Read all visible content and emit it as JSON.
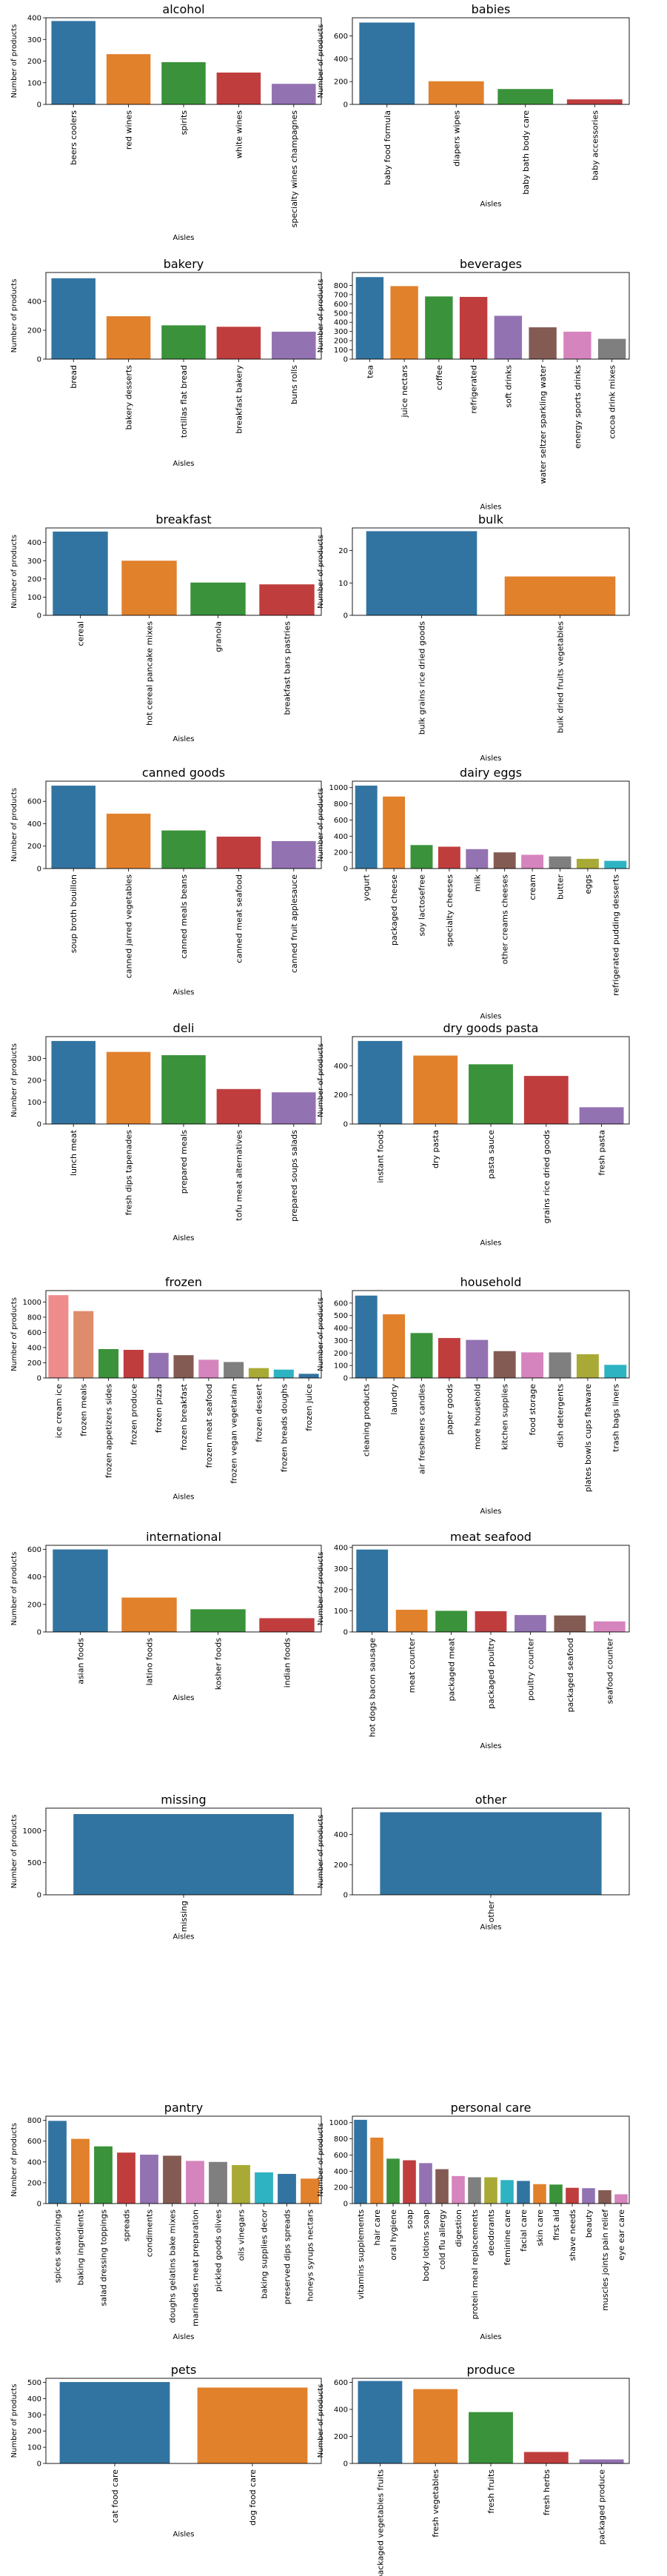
{
  "palette": [
    "#3274a1",
    "#e1812c",
    "#3a923a",
    "#c03d3e",
    "#9372b2",
    "#845b53",
    "#d684bd",
    "#7f7f7f",
    "#a9aa35",
    "#2eb3c2"
  ],
  "palette_pastel_start": [
    "#ee8c8c",
    "#de8c6c"
  ],
  "chart_data": [
    {
      "type": "bar",
      "title": "alcohol",
      "xlabel": "Aisles",
      "ylabel": "Number of products",
      "ylim": [
        0,
        400
      ],
      "yticks": [
        0,
        100,
        200,
        300,
        400
      ],
      "categories": [
        "beers coolers",
        "red wines",
        "spirits",
        "white wines",
        "specialty wines champagnes"
      ],
      "values": [
        385,
        232,
        195,
        147,
        95
      ]
    },
    {
      "type": "bar",
      "title": "babies",
      "xlabel": "Aisles",
      "ylabel": "Number of products",
      "ylim": [
        0,
        760
      ],
      "yticks": [
        0,
        200,
        400,
        600
      ],
      "categories": [
        "baby food formula",
        "diapers wipes",
        "baby bath body care",
        "baby accessories"
      ],
      "values": [
        718,
        203,
        135,
        44
      ]
    },
    {
      "type": "bar",
      "title": "bakery",
      "xlabel": "Aisles",
      "ylabel": "Number of products",
      "ylim": [
        0,
        600
      ],
      "yticks": [
        0,
        200,
        400
      ],
      "categories": [
        "bread",
        "bakery desserts",
        "tortillas flat bread",
        "breakfast bakery",
        "buns rolls"
      ],
      "values": [
        560,
        297,
        234,
        224,
        190
      ]
    },
    {
      "type": "bar",
      "title": "beverages",
      "xlabel": "Aisles",
      "ylabel": "Number of products",
      "ylim": [
        0,
        940
      ],
      "yticks": [
        0,
        100,
        200,
        300,
        400,
        500,
        600,
        700,
        800
      ],
      "categories": [
        "tea",
        "juice nectars",
        "coffee",
        "refrigerated",
        "soft drinks",
        "water seltzer sparkling water",
        "energy sports drinks",
        "cocoa drink mixes"
      ],
      "values": [
        890,
        792,
        680,
        675,
        470,
        345,
        298,
        220
      ]
    },
    {
      "type": "bar",
      "title": "breakfast",
      "xlabel": "Aisles",
      "ylabel": "Number of products",
      "ylim": [
        0,
        480
      ],
      "yticks": [
        0,
        100,
        200,
        300,
        400
      ],
      "categories": [
        "cereal",
        "hot cereal pancake mixes",
        "granola",
        "breakfast bars pastries"
      ],
      "values": [
        460,
        300,
        180,
        170
      ]
    },
    {
      "type": "bar",
      "title": "bulk",
      "xlabel": "Aisles",
      "ylabel": "Number of products",
      "ylim": [
        0,
        27
      ],
      "yticks": [
        0,
        10,
        20
      ],
      "categories": [
        "bulk grains rice dried goods",
        "bulk dried fruits vegetables"
      ],
      "values": [
        26,
        12
      ]
    },
    {
      "type": "bar",
      "title": "canned goods",
      "xlabel": "Aisles",
      "ylabel": "Number of products",
      "ylim": [
        0,
        780
      ],
      "yticks": [
        0,
        200,
        400,
        600
      ],
      "categories": [
        "soup broth bouillon",
        "canned jarred vegetables",
        "canned meals beans",
        "canned meat seafood",
        "canned fruit applesauce"
      ],
      "values": [
        740,
        490,
        340,
        285,
        245
      ]
    },
    {
      "type": "bar",
      "title": "dairy eggs",
      "xlabel": "Aisles",
      "ylabel": "Number of products",
      "ylim": [
        0,
        1080
      ],
      "yticks": [
        0,
        200,
        400,
        600,
        800,
        1000
      ],
      "categories": [
        "yogurt",
        "packaged cheese",
        "soy lactosefree",
        "specialty cheeses",
        "milk",
        "other creams cheeses",
        "cream",
        "butter",
        "eggs",
        "refrigerated pudding desserts"
      ],
      "values": [
        1025,
        890,
        290,
        270,
        240,
        200,
        170,
        150,
        120,
        95
      ]
    },
    {
      "type": "bar",
      "title": "deli",
      "xlabel": "Aisles",
      "ylabel": "Number of products",
      "ylim": [
        0,
        400
      ],
      "yticks": [
        0,
        100,
        200,
        300
      ],
      "categories": [
        "lunch meat",
        "fresh dips tapenades",
        "prepared meals",
        "tofu meat alternatives",
        "prepared soups salads"
      ],
      "values": [
        380,
        330,
        315,
        160,
        145
      ]
    },
    {
      "type": "bar",
      "title": "dry goods pasta",
      "xlabel": "Aisles",
      "ylabel": "Number of products",
      "ylim": [
        0,
        600
      ],
      "yticks": [
        0,
        200,
        400
      ],
      "categories": [
        "instant foods",
        "dry pasta",
        "pasta sauce",
        "grains rice dried goods",
        "fresh pasta"
      ],
      "values": [
        570,
        470,
        410,
        330,
        115
      ]
    },
    {
      "type": "bar",
      "title": "frozen",
      "xlabel": "Aisles",
      "ylabel": "Number of products",
      "ylim": [
        0,
        1150
      ],
      "yticks": [
        0,
        200,
        400,
        600,
        800,
        1000
      ],
      "categories": [
        "ice cream ice",
        "frozen meals",
        "frozen appetizers sides",
        "frozen produce",
        "frozen pizza",
        "frozen breakfast",
        "frozen meat seafood",
        "frozen vegan vegetarian",
        "frozen dessert",
        "frozen breads doughs",
        "frozen juice"
      ],
      "values": [
        1090,
        880,
        380,
        370,
        330,
        300,
        240,
        210,
        130,
        110,
        55
      ]
    },
    {
      "type": "bar",
      "title": "household",
      "xlabel": "Aisles",
      "ylabel": "Number of products",
      "ylim": [
        0,
        700
      ],
      "yticks": [
        0,
        100,
        200,
        300,
        400,
        500,
        600
      ],
      "categories": [
        "cleaning products",
        "laundry",
        "air fresheners candles",
        "paper goods",
        "more household",
        "kitchen supplies",
        "food storage",
        "dish detergents",
        "plates bowls cups flatware",
        "trash bags liners"
      ],
      "values": [
        660,
        510,
        360,
        320,
        305,
        215,
        205,
        205,
        190,
        105
      ]
    },
    {
      "type": "bar",
      "title": "international",
      "xlabel": "Aisles",
      "ylabel": "Number of products",
      "ylim": [
        0,
        630
      ],
      "yticks": [
        0,
        200,
        400,
        600
      ],
      "categories": [
        "asian foods",
        "latino foods",
        "kosher foods",
        "indian foods"
      ],
      "values": [
        600,
        250,
        165,
        100
      ]
    },
    {
      "type": "bar",
      "title": "meat seafood",
      "xlabel": "Aisles",
      "ylabel": "Number of products",
      "ylim": [
        0,
        410
      ],
      "yticks": [
        0,
        100,
        200,
        300,
        400
      ],
      "categories": [
        "hot dogs bacon sausage",
        "meat counter",
        "packaged meat",
        "packaged poultry",
        "poultry counter",
        "packaged seafood",
        "seafood counter"
      ],
      "values": [
        390,
        105,
        100,
        98,
        80,
        78,
        50
      ]
    },
    {
      "type": "bar",
      "title": "missing",
      "xlabel": "Aisles",
      "ylabel": "Number of products",
      "ylim": [
        0,
        1350
      ],
      "yticks": [
        0,
        500,
        1000
      ],
      "categories": [
        "missing"
      ],
      "values": [
        1258
      ]
    },
    {
      "type": "bar",
      "title": "other",
      "xlabel": "Aisles",
      "ylabel": "Number of products",
      "ylim": [
        0,
        575
      ],
      "yticks": [
        0,
        200,
        400
      ],
      "categories": [
        "other"
      ],
      "values": [
        548
      ]
    },
    {
      "type": "bar",
      "title": "pantry",
      "xlabel": "Aisles",
      "ylabel": "Number of products",
      "ylim": [
        0,
        840
      ],
      "yticks": [
        0,
        200,
        400,
        600,
        800
      ],
      "categories": [
        "spices seasonings",
        "baking ingredients",
        "salad dressing toppings",
        "spreads",
        "condiments",
        "doughs gelatins bake mixes",
        "marinades meat preparation",
        "pickled goods olives",
        "oils vinegars",
        "baking supplies decor",
        "preserved dips spreads",
        "honeys syrups nectars"
      ],
      "values": [
        795,
        622,
        550,
        490,
        470,
        460,
        410,
        400,
        370,
        300,
        285,
        240
      ]
    },
    {
      "type": "bar",
      "title": "personal care",
      "xlabel": "Aisles",
      "ylabel": "Number of products",
      "ylim": [
        0,
        1080
      ],
      "yticks": [
        0,
        200,
        400,
        600,
        800,
        1000
      ],
      "categories": [
        "vitamins supplements",
        "hair care",
        "oral hygiene",
        "soap",
        "body lotions soap",
        "cold flu allergy",
        "digestion",
        "protein meal replacements",
        "deodorants",
        "feminine care",
        "facial care",
        "skin care",
        "first aid",
        "shave needs",
        "beauty",
        "muscles joints pain relief",
        "eye ear care"
      ],
      "values": [
        1035,
        815,
        555,
        535,
        500,
        425,
        340,
        325,
        325,
        290,
        280,
        240,
        235,
        195,
        190,
        165,
        115
      ]
    },
    {
      "type": "bar",
      "title": "pets",
      "xlabel": "Aisles",
      "ylabel": "Number of products",
      "ylim": [
        0,
        525
      ],
      "yticks": [
        0,
        100,
        200,
        300,
        400,
        500
      ],
      "categories": [
        "cat food care",
        "dog food care"
      ],
      "values": [
        502,
        468
      ]
    },
    {
      "type": "bar",
      "title": "produce",
      "xlabel": "Aisles",
      "ylabel": "Number of products",
      "ylim": [
        0,
        630
      ],
      "yticks": [
        0,
        200,
        400,
        600
      ],
      "categories": [
        "packaged vegetables fruits",
        "fresh vegetables",
        "fresh fruits",
        "fresh herbs",
        "packaged produce"
      ],
      "values": [
        610,
        550,
        380,
        85,
        30
      ]
    }
  ]
}
